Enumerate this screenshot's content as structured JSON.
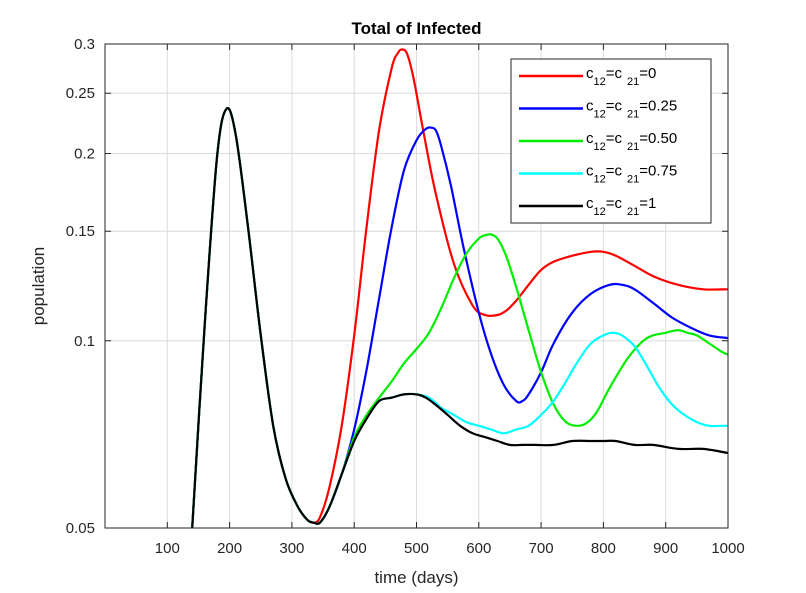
{
  "chart_data": {
    "type": "line",
    "title": "Total of Infected",
    "xlabel": "time (days)",
    "ylabel": "population",
    "xlim": [
      0,
      1000
    ],
    "ylim": [
      0.05,
      0.3
    ],
    "yscale": "log",
    "grid": true,
    "legend_position": "top-right",
    "xticks": [
      100,
      200,
      300,
      400,
      500,
      600,
      700,
      800,
      900,
      1000
    ],
    "xtick_labels": [
      "100",
      "200",
      "300",
      "400",
      "500",
      "600",
      "700",
      "800",
      "900",
      "1000"
    ],
    "yticks": [
      0.05,
      0.1,
      0.15,
      0.2,
      0.25,
      0.3
    ],
    "ytick_labels": [
      "0.05",
      "0.1",
      "0.15",
      "0.2",
      "0.25",
      "0.3"
    ],
    "series": [
      {
        "name": "c12=c21=0",
        "legend": {
          "c1": "c",
          "sub1": "12",
          "eq": "=c",
          "sub2": "21",
          "val": "=0"
        },
        "color": "#ff0000",
        "x": [
          140,
          160,
          180,
          195,
          210,
          230,
          250,
          270,
          290,
          310,
          325,
          335,
          345,
          360,
          380,
          400,
          420,
          440,
          460,
          470,
          477,
          485,
          495,
          510,
          530,
          560,
          590,
          610,
          630,
          645,
          660,
          680,
          700,
          720,
          750,
          780,
          800,
          820,
          850,
          880,
          920,
          960,
          1000
        ],
        "y": [
          0.05,
          0.106,
          0.198,
          0.236,
          0.214,
          0.151,
          0.102,
          0.073,
          0.06,
          0.054,
          0.0515,
          0.051,
          0.052,
          0.058,
          0.073,
          0.102,
          0.153,
          0.218,
          0.274,
          0.29,
          0.294,
          0.289,
          0.265,
          0.22,
          0.174,
          0.133,
          0.114,
          0.11,
          0.11,
          0.112,
          0.116,
          0.123,
          0.13,
          0.134,
          0.137,
          0.139,
          0.139,
          0.137,
          0.132,
          0.127,
          0.123,
          0.121,
          0.121
        ]
      },
      {
        "name": "c12=c21=0.25",
        "legend": {
          "c1": "c",
          "sub1": "12",
          "eq": "=c",
          "sub2": "21",
          "val": "=0.25"
        },
        "color": "#0000ff",
        "x": [
          140,
          160,
          180,
          195,
          210,
          230,
          250,
          270,
          290,
          310,
          325,
          335,
          345,
          360,
          380,
          400,
          420,
          440,
          460,
          480,
          500,
          515,
          525,
          532,
          540,
          555,
          575,
          600,
          620,
          640,
          660,
          670,
          680,
          700,
          720,
          750,
          780,
          810,
          830,
          850,
          880,
          910,
          940,
          970,
          1000
        ],
        "y": [
          0.05,
          0.106,
          0.198,
          0.236,
          0.214,
          0.151,
          0.102,
          0.073,
          0.06,
          0.054,
          0.0515,
          0.051,
          0.051,
          0.054,
          0.061,
          0.072,
          0.09,
          0.117,
          0.152,
          0.188,
          0.21,
          0.219,
          0.22,
          0.217,
          0.205,
          0.178,
          0.142,
          0.111,
          0.095,
          0.085,
          0.08,
          0.08,
          0.082,
          0.089,
          0.099,
          0.111,
          0.119,
          0.123,
          0.123,
          0.121,
          0.115,
          0.109,
          0.105,
          0.102,
          0.101
        ]
      },
      {
        "name": "c12=c21=0.50",
        "legend": {
          "c1": "c",
          "sub1": "12",
          "eq": "=c",
          "sub2": "21",
          "val": "=0.50"
        },
        "color": "#00ee00",
        "x": [
          140,
          160,
          180,
          195,
          210,
          230,
          250,
          270,
          290,
          310,
          325,
          335,
          345,
          360,
          380,
          400,
          420,
          440,
          460,
          480,
          500,
          520,
          540,
          560,
          580,
          600,
          612,
          622,
          632,
          645,
          660,
          680,
          700,
          720,
          740,
          760,
          775,
          790,
          810,
          840,
          870,
          900,
          920,
          935,
          950,
          970,
          990,
          1000
        ],
        "y": [
          0.05,
          0.106,
          0.198,
          0.236,
          0.214,
          0.151,
          0.102,
          0.073,
          0.06,
          0.054,
          0.0515,
          0.051,
          0.051,
          0.054,
          0.061,
          0.07,
          0.076,
          0.081,
          0.086,
          0.092,
          0.097,
          0.103,
          0.113,
          0.126,
          0.138,
          0.146,
          0.148,
          0.148,
          0.145,
          0.136,
          0.122,
          0.104,
          0.089,
          0.079,
          0.074,
          0.073,
          0.074,
          0.077,
          0.084,
          0.094,
          0.101,
          0.103,
          0.104,
          0.103,
          0.102,
          0.099,
          0.096,
          0.095
        ]
      },
      {
        "name": "c12=c21=0.75",
        "legend": {
          "c1": "c",
          "sub1": "12",
          "eq": "=c",
          "sub2": "21",
          "val": "=0.75"
        },
        "color": "#00ffff",
        "x": [
          140,
          160,
          180,
          195,
          210,
          230,
          250,
          270,
          290,
          310,
          325,
          335,
          345,
          360,
          380,
          400,
          420,
          440,
          460,
          480,
          500,
          520,
          540,
          560,
          580,
          600,
          620,
          640,
          660,
          680,
          700,
          720,
          740,
          760,
          780,
          800,
          815,
          830,
          850,
          870,
          890,
          910,
          930,
          950,
          970,
          990,
          1000
        ],
        "y": [
          0.05,
          0.106,
          0.198,
          0.236,
          0.214,
          0.151,
          0.102,
          0.073,
          0.06,
          0.054,
          0.0515,
          0.051,
          0.051,
          0.054,
          0.061,
          0.069,
          0.075,
          0.08,
          0.081,
          0.082,
          0.082,
          0.081,
          0.078,
          0.076,
          0.074,
          0.073,
          0.072,
          0.071,
          0.072,
          0.073,
          0.076,
          0.08,
          0.086,
          0.093,
          0.099,
          0.102,
          0.103,
          0.102,
          0.098,
          0.091,
          0.084,
          0.079,
          0.076,
          0.074,
          0.073,
          0.073,
          0.073
        ]
      },
      {
        "name": "c12=c21=1",
        "legend": {
          "c1": "c",
          "sub1": "12",
          "eq": "=c",
          "sub2": "21",
          "val": "=1"
        },
        "color": "#000000",
        "x": [
          140,
          160,
          180,
          195,
          210,
          230,
          250,
          270,
          290,
          310,
          325,
          335,
          345,
          360,
          380,
          400,
          420,
          440,
          460,
          480,
          500,
          515,
          530,
          550,
          570,
          590,
          610,
          630,
          650,
          670,
          690,
          720,
          750,
          780,
          800,
          820,
          850,
          880,
          920,
          960,
          1000
        ],
        "y": [
          0.05,
          0.106,
          0.198,
          0.236,
          0.214,
          0.151,
          0.102,
          0.073,
          0.06,
          0.054,
          0.0515,
          0.051,
          0.051,
          0.054,
          0.061,
          0.069,
          0.075,
          0.08,
          0.081,
          0.082,
          0.082,
          0.081,
          0.079,
          0.076,
          0.073,
          0.071,
          0.07,
          0.069,
          0.068,
          0.068,
          0.068,
          0.068,
          0.069,
          0.069,
          0.069,
          0.069,
          0.068,
          0.068,
          0.067,
          0.067,
          0.066
        ]
      }
    ]
  }
}
